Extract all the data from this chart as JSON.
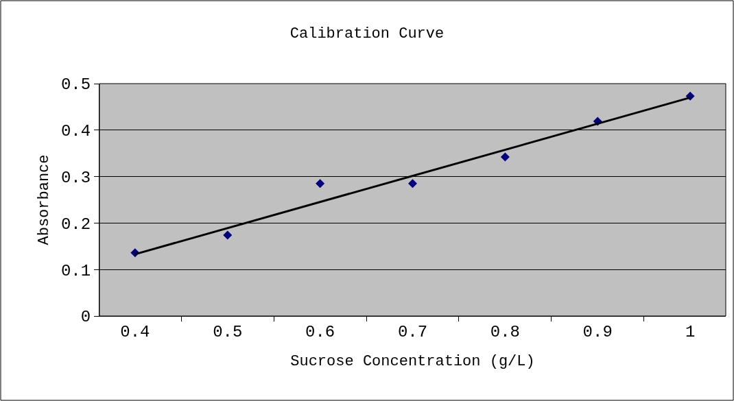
{
  "chart_data": {
    "type": "scatter",
    "title": "Calibration Curve",
    "xlabel": "Sucrose Concentration (g/L)",
    "ylabel": "Absorbance",
    "categories": [
      "0.4",
      "0.5",
      "0.6",
      "0.7",
      "0.8",
      "0.9",
      "1"
    ],
    "series": [
      {
        "color": "#000080",
        "marker": "diamond",
        "values": [
          0.136,
          0.174,
          0.285,
          0.285,
          0.342,
          0.419,
          0.473
        ]
      },
      {
        "type": "line",
        "color": "#000000",
        "marker": "none",
        "line_style": "solid",
        "x": [
          "0.4",
          "1"
        ],
        "values": [
          0.133,
          0.47
        ]
      }
    ],
    "ylim": [
      0,
      0.5
    ],
    "yticks": [
      0,
      0.1,
      0.2,
      0.3,
      0.4,
      0.5
    ],
    "grid": "y",
    "legend": false
  }
}
